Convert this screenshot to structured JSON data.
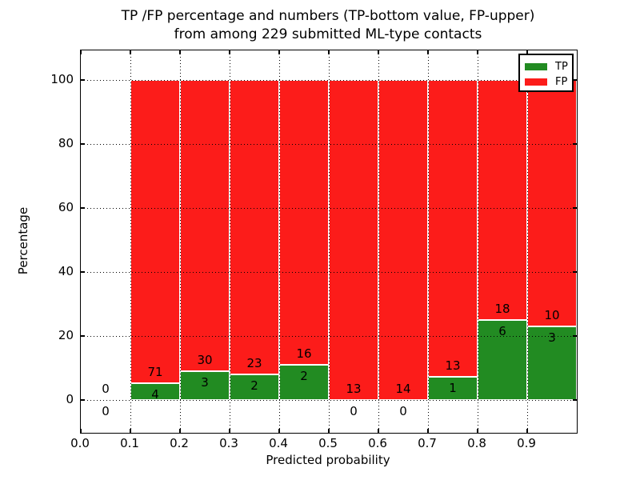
{
  "figure": {
    "title_line1": "TP /FP percentage and numbers (TP-bottom value, FP-upper)",
    "title_line2": "from among 229 submitted ML-type contacts"
  },
  "axes": {
    "ylabel": "Percentage",
    "xlabel": "Predicted probability",
    "yticks": [
      {
        "value": 0,
        "label": "0"
      },
      {
        "value": 20,
        "label": "20"
      },
      {
        "value": 40,
        "label": "40"
      },
      {
        "value": 60,
        "label": "60"
      },
      {
        "value": 80,
        "label": "80"
      },
      {
        "value": 100,
        "label": "100"
      }
    ],
    "xticks": [
      {
        "value": 0.0,
        "label": "0.0"
      },
      {
        "value": 0.1,
        "label": "0.1"
      },
      {
        "value": 0.2,
        "label": "0.2"
      },
      {
        "value": 0.3,
        "label": "0.3"
      },
      {
        "value": 0.4,
        "label": "0.4"
      },
      {
        "value": 0.5,
        "label": "0.5"
      },
      {
        "value": 0.6,
        "label": "0.6"
      },
      {
        "value": 0.7,
        "label": "0.7"
      },
      {
        "value": 0.8,
        "label": "0.8"
      },
      {
        "value": 0.9,
        "label": "0.9"
      }
    ]
  },
  "legend": {
    "items": [
      {
        "label": "TP",
        "color": "#228b22"
      },
      {
        "label": "FP",
        "color": "#fc1c1a"
      }
    ]
  },
  "chart_data": {
    "type": "bar",
    "stacked": true,
    "normalized_to_percent_per_bin": true,
    "title": "TP /FP percentage and numbers (TP-bottom value, FP-upper) from among 229 submitted ML-type contacts",
    "xlabel": "Predicted probability",
    "ylabel": "Percentage",
    "xlim": [
      0.0,
      1.0
    ],
    "ylim": [
      -10.25,
      109.25
    ],
    "grid": "dotted-black-above-bars",
    "legend_position": "upper right",
    "total_contacts": 229,
    "bins": [
      [
        0.0,
        0.1
      ],
      [
        0.1,
        0.2
      ],
      [
        0.2,
        0.3
      ],
      [
        0.3,
        0.4
      ],
      [
        0.4,
        0.5
      ],
      [
        0.5,
        0.6
      ],
      [
        0.6,
        0.7
      ],
      [
        0.7,
        0.8
      ],
      [
        0.8,
        0.9
      ],
      [
        0.9,
        1.0
      ]
    ],
    "series": [
      {
        "name": "TP",
        "color": "#228b22",
        "counts": [
          0,
          4,
          3,
          2,
          2,
          0,
          0,
          1,
          6,
          3
        ]
      },
      {
        "name": "FP",
        "color": "#fc1c1a",
        "counts": [
          0,
          71,
          30,
          23,
          16,
          13,
          14,
          13,
          18,
          10
        ]
      }
    ],
    "tp_percent": [
      0,
      5.333,
      9.091,
      8.0,
      11.111,
      0,
      0,
      7.143,
      25.0,
      23.077
    ],
    "fp_top_percent": 100,
    "annotation_offset_pct": 3.5
  }
}
